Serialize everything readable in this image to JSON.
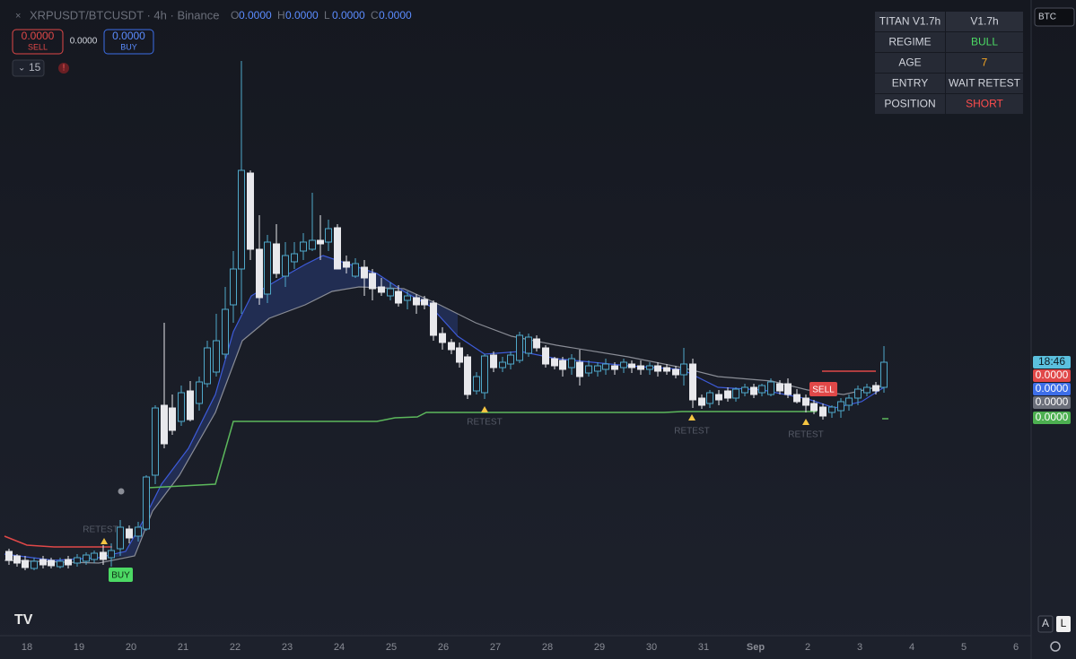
{
  "header": {
    "symbol": "XRPUSDT/BTCUSDT · 4h · Binance",
    "ohlc": [
      {
        "label": "O",
        "value": "0.0000"
      },
      {
        "label": "H",
        "value": "0.0000"
      },
      {
        "label": "L",
        "value": "0.0000"
      },
      {
        "label": "C",
        "value": "0.0000"
      }
    ]
  },
  "trade": {
    "sell_price": "0.0000",
    "sell_label": "SELL",
    "spread": "0.0000",
    "buy_price": "0.0000",
    "buy_label": "BUY"
  },
  "indicator_count": "15",
  "table": {
    "rows": [
      [
        "TITAN V1.7h",
        "V1.7h"
      ],
      [
        "REGIME",
        "BULL"
      ],
      [
        "AGE",
        "7"
      ],
      [
        "ENTRY",
        "WAIT RETEST"
      ],
      [
        "POSITION",
        "SHORT"
      ]
    ]
  },
  "symbol_badge": "BTC",
  "price_labels": [
    "18:46",
    "0.0000",
    "0.0000",
    "0.0000",
    "0.0000"
  ],
  "time_labels": [
    "18",
    "19",
    "20",
    "21",
    "22",
    "23",
    "24",
    "25",
    "26",
    "27",
    "28",
    "29",
    "30",
    "31",
    "Sep",
    "2",
    "3",
    "4",
    "5",
    "6"
  ],
  "signals": {
    "buy": "BUY",
    "sell": "SELL",
    "retest": [
      "RETEST",
      "RETEST",
      "RETEST",
      "RETEST"
    ]
  },
  "scale_buttons": [
    "A",
    "L"
  ]
}
